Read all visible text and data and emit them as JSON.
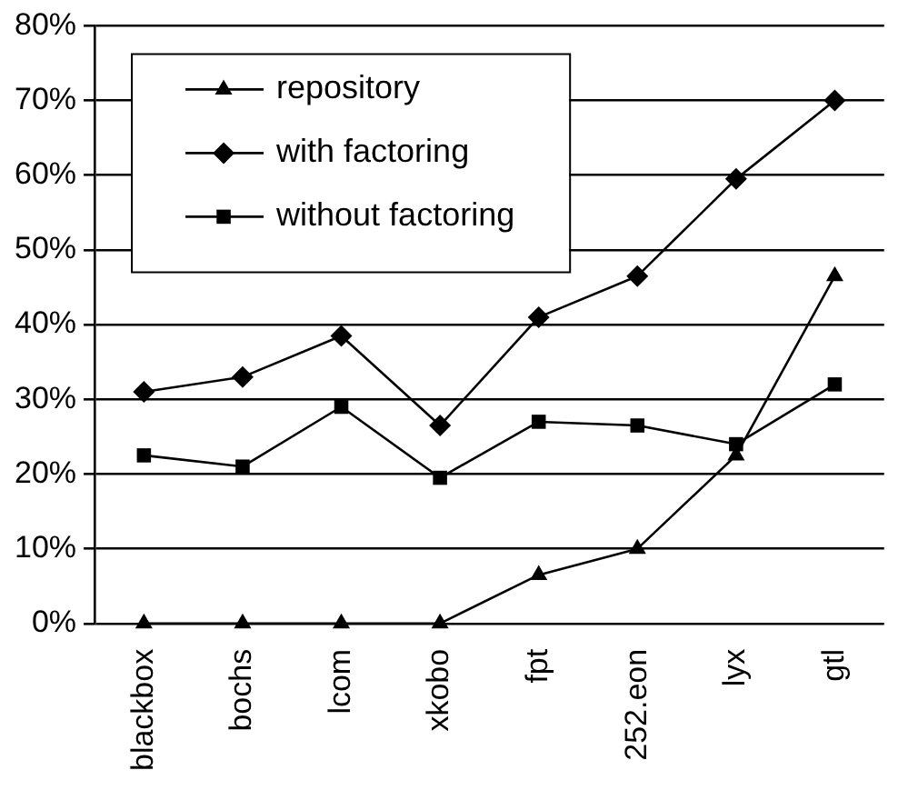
{
  "chart_data": {
    "type": "line",
    "categories": [
      "blackbox",
      "bochs",
      "lcom",
      "xkobo",
      "fpt",
      "252.eon",
      "lyx",
      "gtl"
    ],
    "series": [
      {
        "name": "repository",
        "color": "#000000",
        "marker": "triangle",
        "values": [
          0,
          0,
          0,
          0,
          6.5,
          10,
          22.5,
          46.5
        ]
      },
      {
        "name": "with factoring",
        "color": "#000000",
        "marker": "diamond",
        "values": [
          31,
          33,
          38.5,
          26.5,
          41,
          46.5,
          59.5,
          70
        ]
      },
      {
        "name": "without factoring",
        "color": "#000000",
        "marker": "square",
        "values": [
          22.5,
          21,
          29,
          19.5,
          27,
          26.5,
          24,
          32
        ]
      }
    ],
    "ylim": [
      0,
      80
    ],
    "yticks": [
      {
        "value": 0,
        "label": "0%"
      },
      {
        "value": 10,
        "label": "10%"
      },
      {
        "value": 20,
        "label": "20%"
      },
      {
        "value": 30,
        "label": "30%"
      },
      {
        "value": 40,
        "label": "40%"
      },
      {
        "value": 50,
        "label": "50%"
      },
      {
        "value": 60,
        "label": "60%"
      },
      {
        "value": 70,
        "label": "70%"
      },
      {
        "value": 80,
        "label": "80%"
      }
    ],
    "grid": "y",
    "legend": "top left",
    "line_style": "solid"
  }
}
